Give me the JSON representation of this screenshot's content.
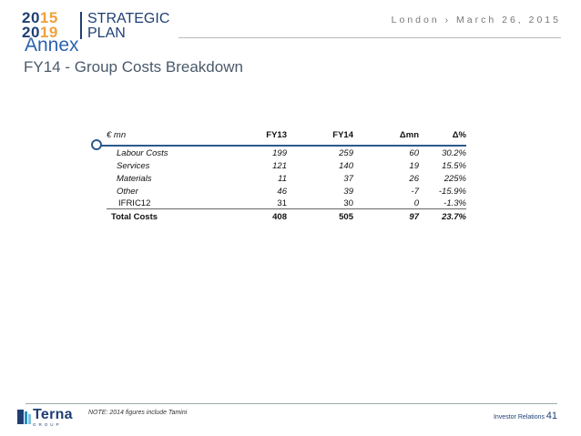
{
  "header": {
    "logo": {
      "y1_main": "20",
      "y1_hl": "15",
      "y2_main": "20",
      "y2_hl": "19",
      "word1": "STRATEGIC",
      "word2": "PLAN"
    },
    "location_date": "London › March 26, 2015"
  },
  "slide": {
    "section": "Annex",
    "title": "FY14 - Group Costs Breakdown"
  },
  "table": {
    "columns": [
      "€ mn",
      "FY13",
      "FY14",
      "Δmn",
      "Δ%"
    ],
    "rows": [
      {
        "label": "Labour Costs",
        "fy13": "199",
        "fy14": "259",
        "dmn": "60",
        "dpct": "30.2%"
      },
      {
        "label": "Services",
        "fy13": "121",
        "fy14": "140",
        "dmn": "19",
        "dpct": "15.5%"
      },
      {
        "label": "Materials",
        "fy13": "11",
        "fy14": "37",
        "dmn": "26",
        "dpct": "225%"
      },
      {
        "label": "Other",
        "fy13": "46",
        "fy14": "39",
        "dmn": "-7",
        "dpct": "-15.9%"
      },
      {
        "label": "IFRIC12",
        "fy13": "31",
        "fy14": "30",
        "dmn": "0",
        "dpct": "-1.3%"
      }
    ],
    "total": {
      "label": "Total Costs",
      "fy13": "408",
      "fy14": "505",
      "dmn": "97",
      "dpct": "23.7%"
    }
  },
  "footer": {
    "brand": "Terna",
    "brand_sub": "GROUP",
    "note": "NOTE: 2014 figures include Tamini",
    "section_label": "Investor Relations",
    "page_number": "41"
  },
  "colors": {
    "accent": "#2b63b0",
    "navy": "#1f3f73",
    "orange": "#f0a03a"
  }
}
